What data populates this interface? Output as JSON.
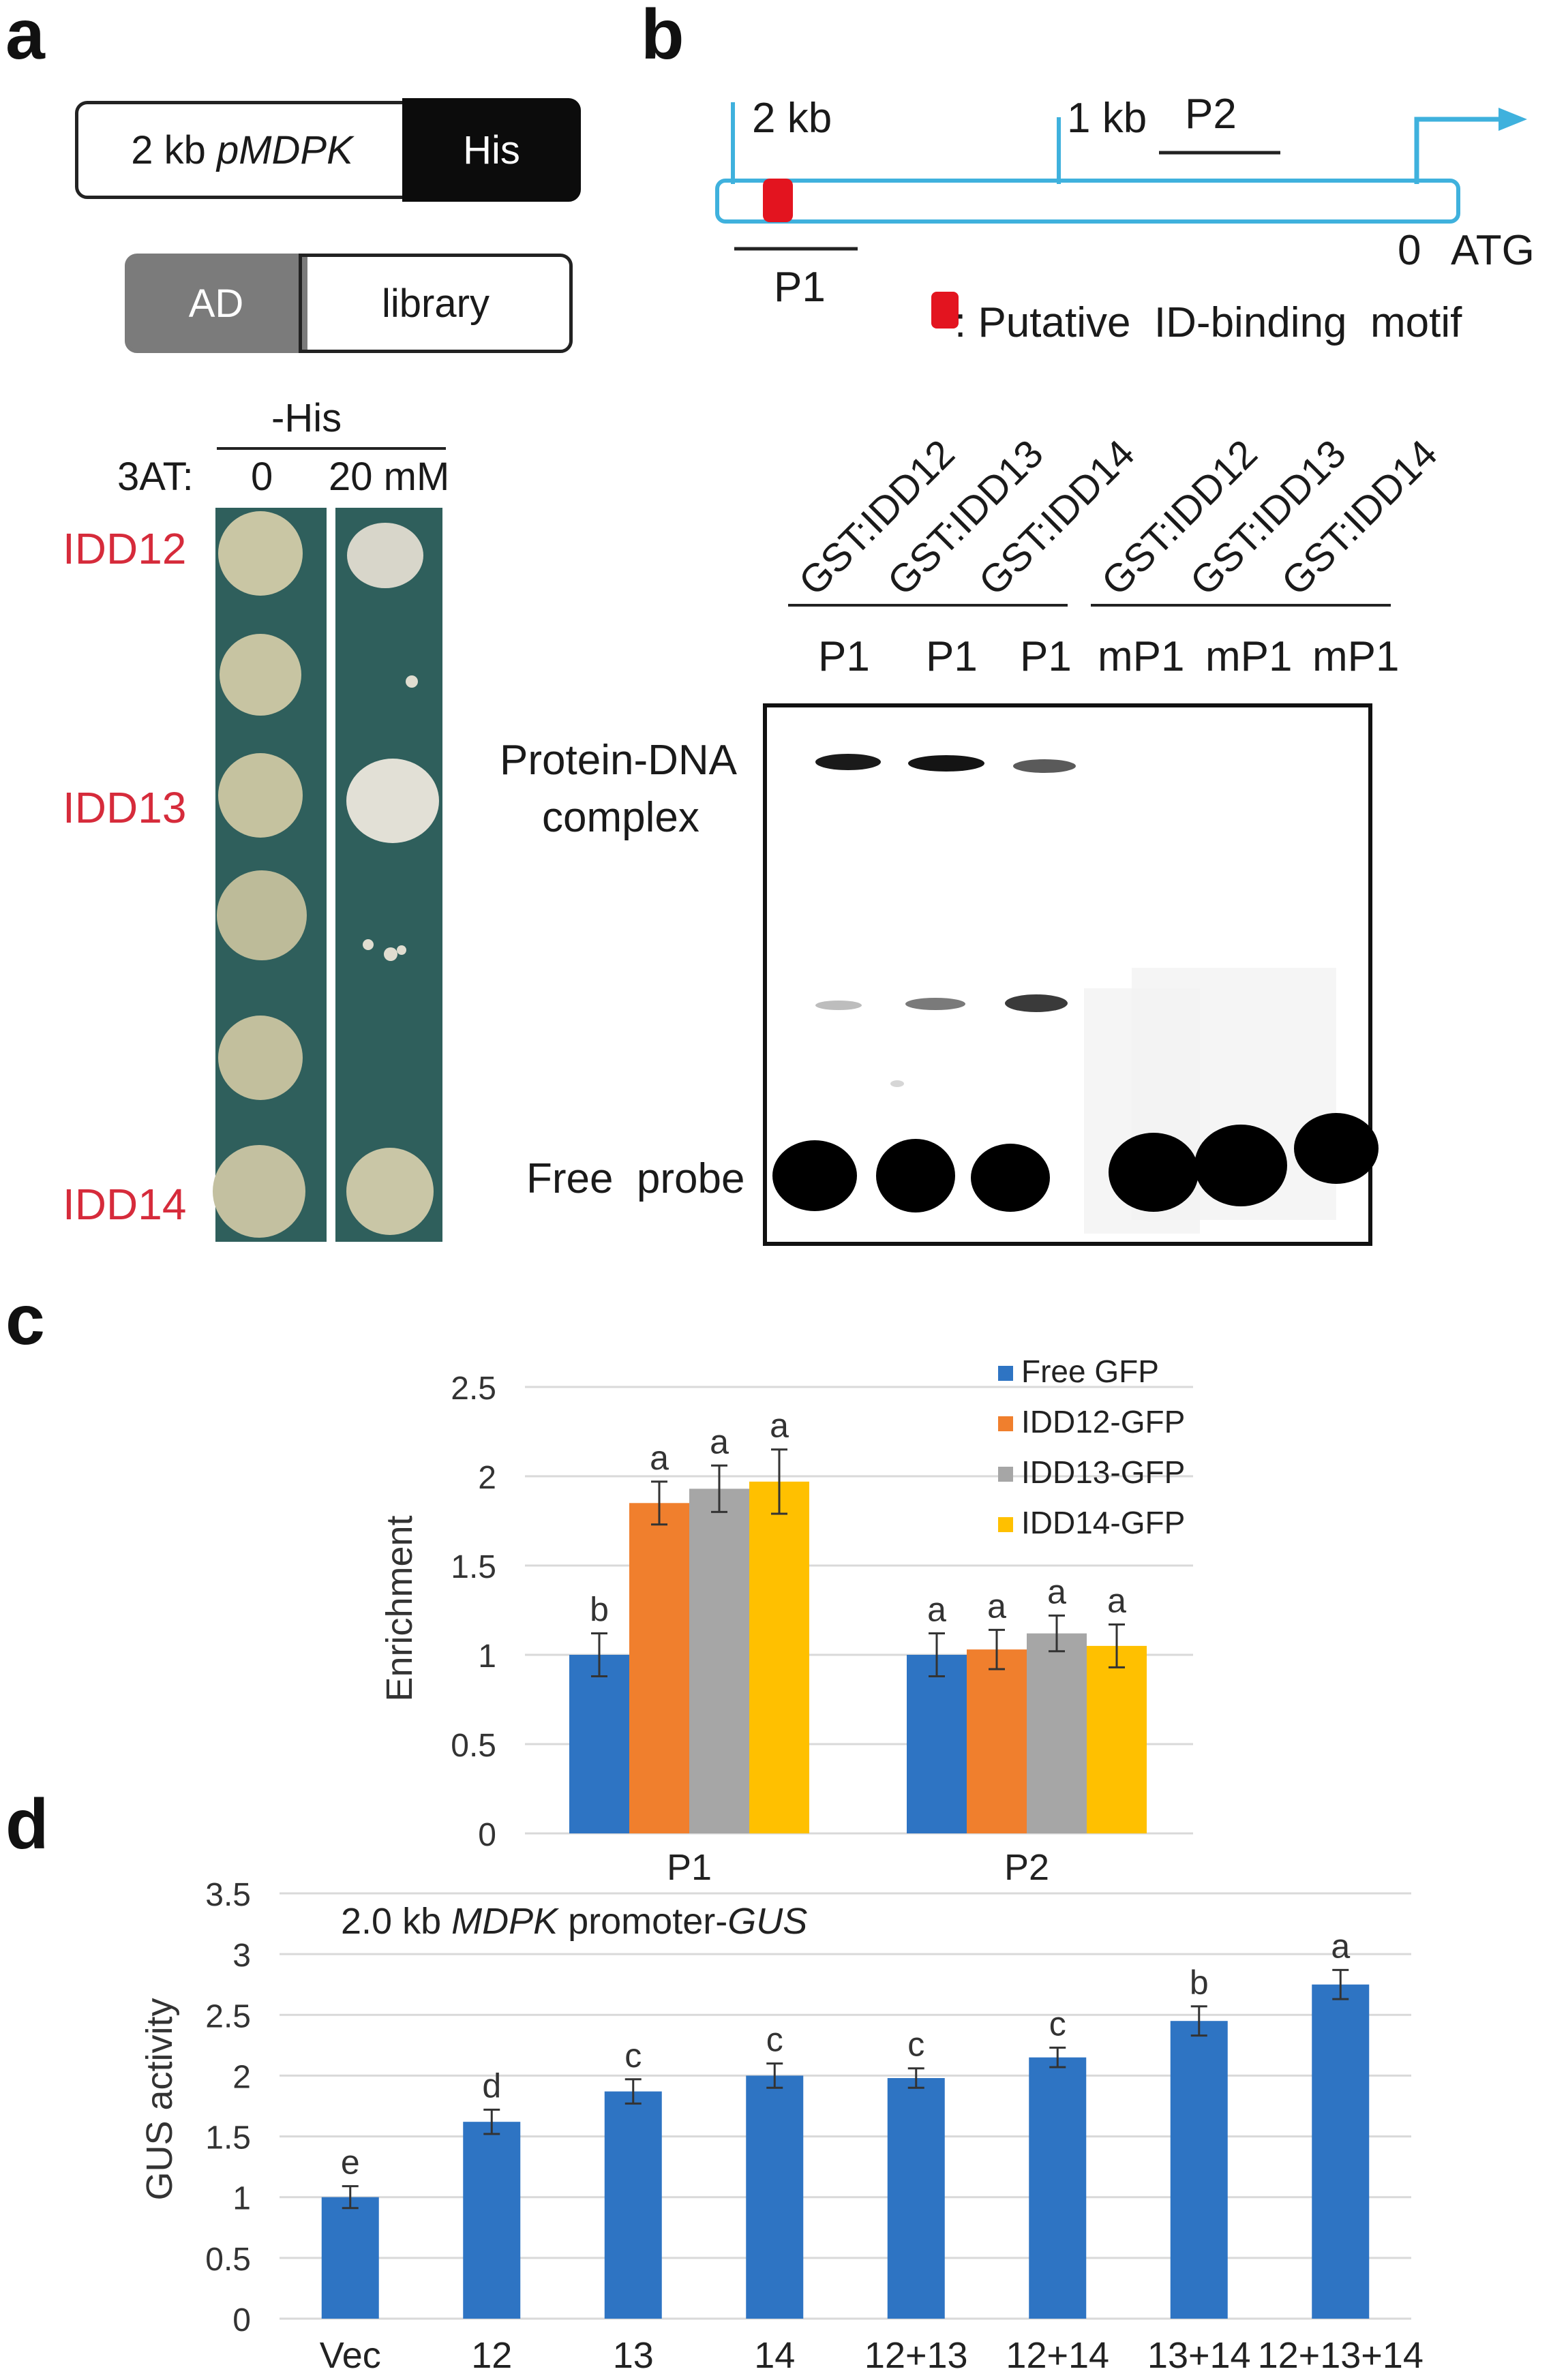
{
  "panel_a": {
    "letter": "a",
    "construct": {
      "promoter_prefix": "2 kb ",
      "promoter_name": "pMDPK",
      "reporter": "His"
    },
    "prey": {
      "ad": "AD",
      "library": "library"
    },
    "medium": "-His",
    "threeat_label": "3AT:",
    "conc_0": "0",
    "conc_20": "20 mM",
    "row_labels": {
      "idd12": "IDD12",
      "idd13": "IDD13",
      "idd14": "IDD14"
    }
  },
  "panel_b": {
    "letter": "b",
    "map": {
      "label_2kb": "2 kb",
      "label_1kb": "1 kb",
      "label_p2": "P2",
      "label_p1": "P1",
      "label_0": "0",
      "label_atg": "ATG",
      "legend": ": Putative  ID-binding  motif"
    },
    "lanes": [
      "GST:IDD12",
      "GST:IDD13",
      "GST:IDD14",
      "GST:IDD12",
      "GST:IDD13",
      "GST:IDD14"
    ],
    "probes": [
      "P1",
      "P1",
      "P1",
      "mP1",
      "mP1",
      "mP1"
    ],
    "complex_label_line1": "Protein-DNA",
    "complex_label_line2": "complex",
    "free_probe_label": "Free  probe"
  },
  "panel_c": {
    "letter": "c",
    "colors": {
      "Free GFP": "#2e74c3",
      "IDD12-GFP": "#f07f2d",
      "IDD13-GFP": "#a6a6a6",
      "IDD14-GFP": "#ffc000"
    }
  },
  "panel_d": {
    "letter": "d",
    "bar_color": "#2e74c3"
  },
  "chart_data": [
    {
      "type": "bar",
      "panel": "c",
      "title": "",
      "ylabel": "Enrichment",
      "xlabel": "",
      "categories": [
        "P1",
        "P2"
      ],
      "ylim": [
        0,
        2.5
      ],
      "yticks": [
        "0",
        "0.5",
        "1",
        "1.5",
        "2",
        "2.5"
      ],
      "grid": true,
      "legend_position": "top-right",
      "series": [
        {
          "name": "Free GFP",
          "values": [
            1.0,
            1.0
          ],
          "errors": [
            0.12,
            0.12
          ],
          "letters": [
            "b",
            "a"
          ]
        },
        {
          "name": "IDD12-GFP",
          "values": [
            1.85,
            1.03
          ],
          "errors": [
            0.12,
            0.11
          ],
          "letters": [
            "a",
            "a"
          ]
        },
        {
          "name": "IDD13-GFP",
          "values": [
            1.93,
            1.12
          ],
          "errors": [
            0.13,
            0.1
          ],
          "letters": [
            "a",
            "a"
          ]
        },
        {
          "name": "IDD14-GFP",
          "values": [
            1.97,
            1.05
          ],
          "errors": [
            0.18,
            0.12
          ],
          "letters": [
            "a",
            "a"
          ]
        }
      ]
    },
    {
      "type": "bar",
      "panel": "d",
      "title_plain": "2.0 kb ",
      "title_italic_1": "MDPK",
      "title_mid": " promoter-",
      "title_italic_2": "GUS",
      "ylabel": "GUS activity",
      "xlabel": "",
      "categories": [
        "Vec",
        "12",
        "13",
        "14",
        "12+13",
        "12+14",
        "13+14",
        "12+13+14"
      ],
      "values": [
        1.0,
        1.62,
        1.87,
        2.0,
        1.98,
        2.15,
        2.45,
        2.75
      ],
      "errors": [
        0.09,
        0.1,
        0.1,
        0.1,
        0.08,
        0.08,
        0.12,
        0.12
      ],
      "letters": [
        "e",
        "d",
        "c",
        "c",
        "c",
        "c",
        "b",
        "a"
      ],
      "ylim": [
        0,
        3.5
      ],
      "yticks": [
        "0",
        "0.5",
        "1",
        "1.5",
        "2",
        "2.5",
        "3",
        "3.5"
      ],
      "grid": true
    }
  ]
}
